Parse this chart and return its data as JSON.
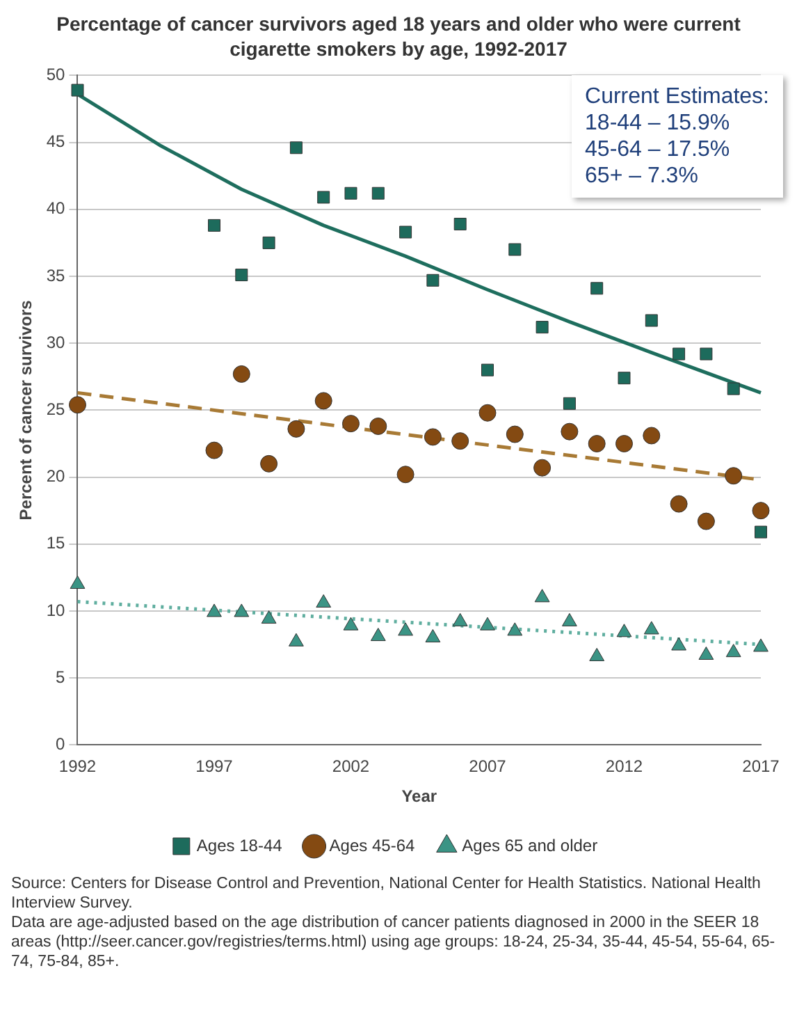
{
  "chart_data": {
    "type": "scatter",
    "title": "Percentage of cancer survivors aged 18 years and older who were current cigarette smokers by age, 1992-2017",
    "xlabel": "Year",
    "ylabel": "Percent of cancer survivors",
    "x": [
      1992,
      1997,
      1998,
      1999,
      2000,
      2001,
      2002,
      2003,
      2004,
      2005,
      2006,
      2007,
      2008,
      2009,
      2010,
      2011,
      2012,
      2013,
      2014,
      2015,
      2016,
      2017
    ],
    "xlim": [
      1992,
      2017
    ],
    "xticks": [
      1992,
      1997,
      2002,
      2007,
      2012,
      2017
    ],
    "ylim": [
      0,
      50
    ],
    "yticks": [
      0,
      5,
      10,
      15,
      20,
      25,
      30,
      35,
      40,
      45,
      50
    ],
    "grid": "y",
    "legend": "bottom",
    "series": [
      {
        "name": "Ages 18-44",
        "marker": "square",
        "color": "#1d6b5c",
        "values": [
          48.9,
          38.8,
          35.1,
          37.5,
          44.6,
          40.9,
          41.2,
          41.2,
          38.3,
          34.7,
          38.9,
          28.0,
          37.0,
          31.2,
          25.5,
          34.1,
          27.4,
          31.7,
          29.2,
          29.2,
          26.6,
          15.9
        ]
      },
      {
        "name": "Ages 45-64",
        "marker": "circle",
        "color": "#844a12",
        "values": [
          25.4,
          22.0,
          27.7,
          21.0,
          23.6,
          25.7,
          24.0,
          23.8,
          20.2,
          23.0,
          22.7,
          24.8,
          23.2,
          20.7,
          23.4,
          22.5,
          22.5,
          23.1,
          18.0,
          16.7,
          20.1,
          17.5
        ]
      },
      {
        "name": "Ages 65 and older",
        "marker": "triangle",
        "color": "#3b9485",
        "values": [
          12.0,
          9.9,
          9.9,
          9.4,
          7.7,
          10.6,
          8.9,
          8.1,
          8.5,
          8.0,
          9.2,
          8.9,
          8.5,
          11.0,
          9.2,
          6.6,
          8.4,
          8.6,
          7.4,
          6.7,
          6.9,
          7.3
        ]
      },
      {
        "type": "line",
        "color": "#1e6e5e",
        "line_style": "solid",
        "marker": "none",
        "x": [
          1992,
          1995,
          1998,
          2001,
          2004,
          2007,
          2010,
          2013,
          2017
        ],
        "values": [
          48.6,
          44.8,
          41.5,
          38.8,
          36.5,
          34.0,
          31.6,
          29.3,
          26.3
        ]
      },
      {
        "type": "line",
        "color": "#a87a35",
        "line_style": "dashed",
        "marker": "none",
        "x": [
          1992,
          2017
        ],
        "values": [
          26.3,
          19.8
        ]
      },
      {
        "type": "line",
        "color": "#5fae9f",
        "line_style": "dotted",
        "marker": "none",
        "x": [
          1992,
          2017
        ],
        "values": [
          10.7,
          7.5
        ]
      }
    ],
    "annotations": [
      "Current Estimates:\n18-44 – 15.9%\n45-64 – 17.5%\n65+ – 7.3%",
      "Source: Centers for Disease Control and Prevention, National Center for Health Statistics. National Health Interview Survey.\nData are age-adjusted based on the age distribution of cancer patients diagnosed in 2000 in the SEER 18 areas (http://seer.cancer.gov/registries/terms.html) using age groups: 18-24, 25-34, 35-44, 45-54, 55-64, 65-74, 75-84, 85+."
    ]
  }
}
